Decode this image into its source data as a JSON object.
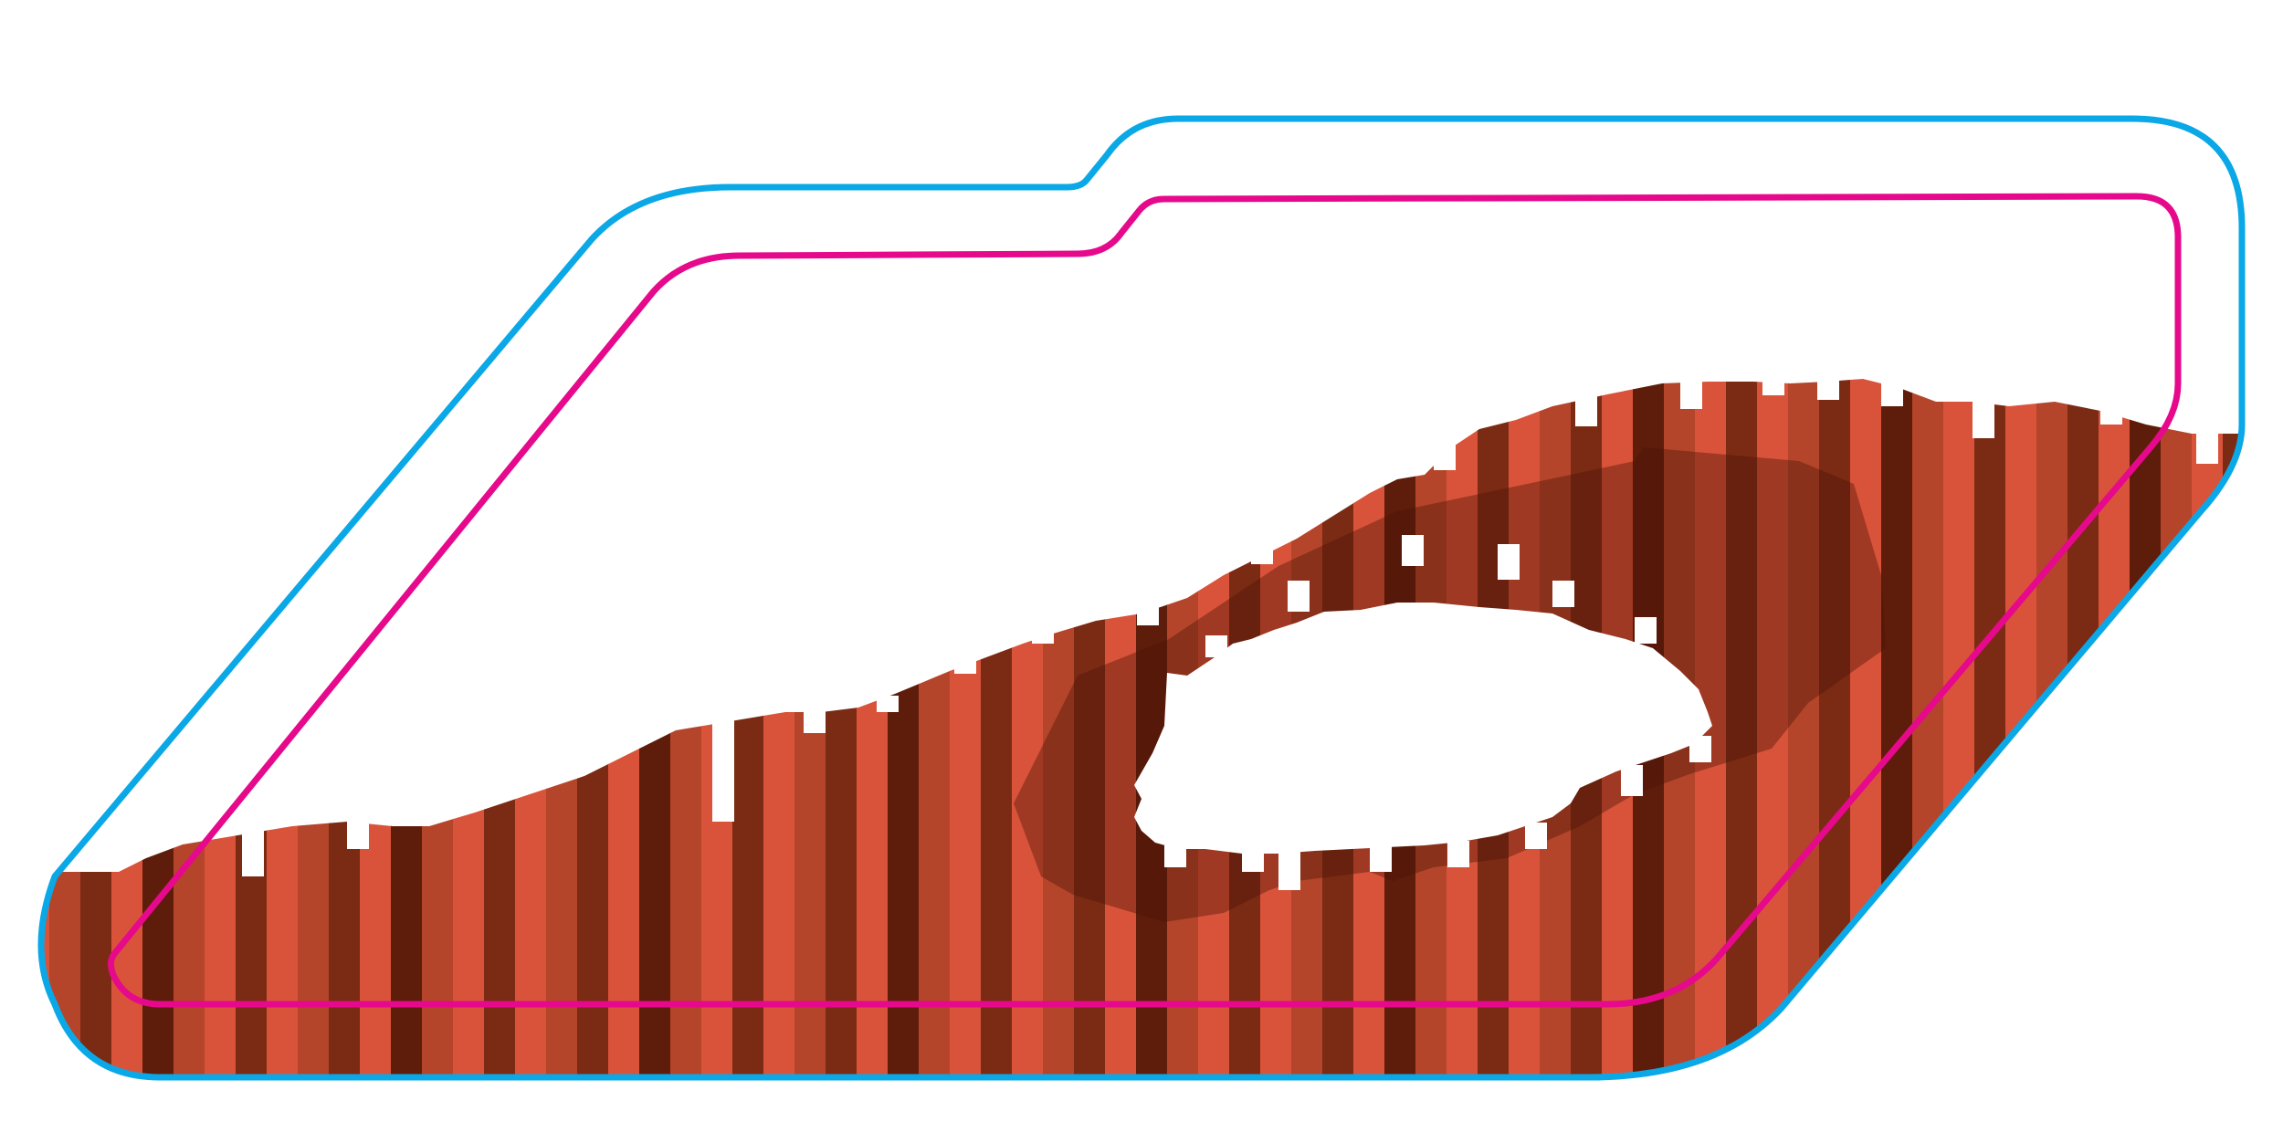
{
  "illustration": {
    "name": "folder-terrain-illustration",
    "colors": {
      "background": "#ffffff",
      "outer_outline": "#0aa8e6",
      "inner_outline": "#e6098c",
      "stripe_base": "#d9533a",
      "stripe_mid": "#b4452a",
      "stripe_dark": "#7b2a14",
      "stripe_darkest": "#5e1c0a",
      "shadow": "#4a1406",
      "hole": "#ffffff"
    },
    "stripe_pattern": [
      "base",
      "mid",
      "dark",
      "base",
      "darkest",
      "mid",
      "base",
      "dark"
    ]
  }
}
